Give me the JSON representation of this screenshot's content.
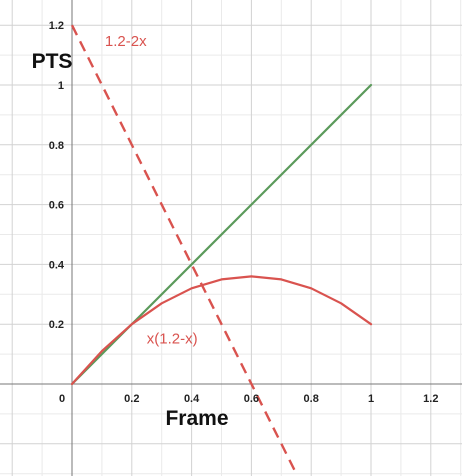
{
  "chart_data": {
    "type": "line",
    "xlabel": "Frame",
    "ylabel": "PTS",
    "xlim": [
      0,
      1.3
    ],
    "ylim": [
      0,
      1.3
    ],
    "grid": true,
    "x_ticks": [
      {
        "value": 0,
        "label": "0"
      },
      {
        "value": 0.2,
        "label": "0.2"
      },
      {
        "value": 0.4,
        "label": "0.4"
      },
      {
        "value": 0.6,
        "label": "0.6"
      },
      {
        "value": 0.8,
        "label": "0.8"
      },
      {
        "value": 1,
        "label": "1"
      },
      {
        "value": 1.2,
        "label": "1.2"
      }
    ],
    "y_ticks": [
      {
        "value": 0.2,
        "label": "0.2"
      },
      {
        "value": 0.4,
        "label": "0.4"
      },
      {
        "value": 0.6,
        "label": "0.6"
      },
      {
        "value": 0.8,
        "label": "0.8"
      },
      {
        "value": 1,
        "label": "1"
      },
      {
        "value": 1.2,
        "label": "1.2"
      }
    ],
    "series": [
      {
        "color": "#5b9a5b",
        "dash": false,
        "x": [
          0,
          1
        ],
        "y": [
          0,
          1
        ]
      },
      {
        "color": "#d9534f",
        "dash": false,
        "x": [
          0,
          0.1,
          0.2,
          0.3,
          0.4,
          0.5,
          0.6,
          0.7,
          0.8,
          0.9,
          1
        ],
        "y": [
          0,
          0.11,
          0.2,
          0.27,
          0.32,
          0.35,
          0.36,
          0.35,
          0.32,
          0.27,
          0.2
        ]
      },
      {
        "color": "#d9534f",
        "dash": true,
        "x": [
          0,
          0.75
        ],
        "y": [
          1.2,
          -0.3
        ]
      }
    ],
    "annotations": [
      {
        "text": "1.2-2x",
        "x": 0.11,
        "y": 1.13,
        "color": "#d9534f"
      },
      {
        "text": "x(1.2-x)",
        "x": 0.25,
        "y": 0.135,
        "color": "#d9534f"
      }
    ]
  }
}
